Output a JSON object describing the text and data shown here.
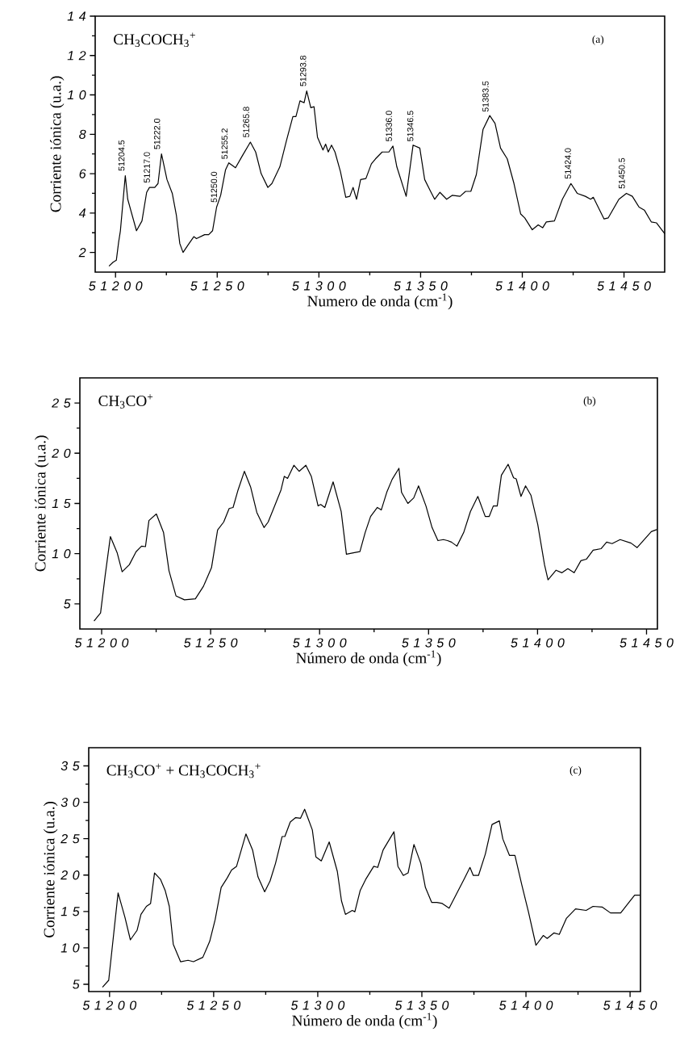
{
  "chart_data": [
    {
      "type": "line",
      "title": "CH$_{3}$COCH$_{3}$$^{+}$",
      "xlabel": "Numero de onda (cm$^{-1}$)",
      "ylabel": "Corriente iónica (u.a.)",
      "color": "#000000",
      "xlim": [
        51190,
        51470
      ],
      "ylim": [
        1,
        14
      ],
      "xticks": [
        51200,
        51250,
        51300,
        51350,
        51400,
        51450
      ],
      "yticks": [
        2,
        4,
        6,
        8,
        10,
        12,
        14
      ],
      "annotations": [
        "(a)",
        {
          "text": "51204.5",
          "x": 51204.5,
          "y": 5.9
        },
        {
          "text": "51217.0",
          "x": 51217.0,
          "y": 5.3
        },
        {
          "text": "51222.0",
          "x": 51222.0,
          "y": 7.0
        },
        {
          "text": "51250.0",
          "x": 51250.0,
          "y": 4.3
        },
        {
          "text": "51255.2",
          "x": 51255.2,
          "y": 6.5
        },
        {
          "text": "51265.8",
          "x": 51265.8,
          "y": 7.6
        },
        {
          "text": "51293.8",
          "x": 51293.8,
          "y": 10.2
        },
        {
          "text": "51336.0",
          "x": 51336.0,
          "y": 7.4
        },
        {
          "text": "51346.5",
          "x": 51346.5,
          "y": 7.4
        },
        {
          "text": "51383.5",
          "x": 51383.5,
          "y": 8.9
        },
        {
          "text": "51424.0",
          "x": 51424.0,
          "y": 5.5
        },
        {
          "text": "51450.5",
          "x": 51450.5,
          "y": 5.0
        }
      ],
      "x": [
        51196.8,
        51198.8,
        51200.4,
        51201.5,
        51202.4,
        51204.8,
        51206,
        51210.3,
        51213,
        51215.3,
        51216.7,
        51219.3,
        51220.9,
        51222.6,
        51225.3,
        51227.9,
        51229.9,
        51231.6,
        51233.2,
        51235.8,
        51238.5,
        51239.8,
        51243.8,
        51245.8,
        51247.7,
        51249.7,
        51251.7,
        51254.1,
        51255.7,
        51259,
        51262.3,
        51266.3,
        51268.9,
        51271.6,
        51274.9,
        51276.9,
        51280.8,
        51284.1,
        51287.2,
        51288.7,
        51290.7,
        51292.7,
        51294.0,
        51296,
        51297.6,
        51299.3,
        51302,
        51303.3,
        51304.6,
        51306.2,
        51307.9,
        51310.6,
        51313.2,
        51315.2,
        51316.8,
        51318.5,
        51320.5,
        51323.1,
        51325.8,
        51327.8,
        51331.1,
        51334.4,
        51336.4,
        51338.3,
        51342.9,
        51346.3,
        51349.6,
        51352,
        51354.9,
        51356.9,
        51359.5,
        51362.8,
        51365.5,
        51369.4,
        51372.1,
        51374.7,
        51377.4,
        51380.7,
        51384,
        51386.6,
        51389.3,
        51392.6,
        51395.9,
        51399.2,
        51401.2,
        51404.9,
        51407.8,
        51410,
        51411.8,
        51415.8,
        51419.7,
        51423.9,
        51427,
        51431,
        51433.6,
        51434.9,
        51440.2,
        51442.2,
        51447.5,
        51451.2,
        51454.1,
        51457.4,
        51460,
        51463.4,
        51466,
        51470
      ],
      "values": [
        1.3,
        1.5,
        1.6,
        2.5,
        3.1,
        5.9,
        4.7,
        3.1,
        3.6,
        5.05,
        5.3,
        5.3,
        5.5,
        7.0,
        5.7,
        5.0,
        3.9,
        2.45,
        2.0,
        2.4,
        2.8,
        2.7,
        2.9,
        2.9,
        3.1,
        4.3,
        4.9,
        6.2,
        6.55,
        6.3,
        6.9,
        7.6,
        7.1,
        6.0,
        5.3,
        5.5,
        6.35,
        7.7,
        8.9,
        8.9,
        9.7,
        9.6,
        10.2,
        9.35,
        9.4,
        7.85,
        7.2,
        7.5,
        7.1,
        7.45,
        7.1,
        6.1,
        4.8,
        4.85,
        5.3,
        4.7,
        5.7,
        5.75,
        6.5,
        6.75,
        7.1,
        7.1,
        7.4,
        6.35,
        4.85,
        7.45,
        7.3,
        5.7,
        5.1,
        4.7,
        5.05,
        4.7,
        4.9,
        4.85,
        5.1,
        5.1,
        5.95,
        8.25,
        8.95,
        8.55,
        7.3,
        6.75,
        5.5,
        3.95,
        3.75,
        3.15,
        3.4,
        3.25,
        3.55,
        3.6,
        4.7,
        5.5,
        5.0,
        4.85,
        4.7,
        4.8,
        3.7,
        3.75,
        4.7,
        5.0,
        4.85,
        4.3,
        4.15,
        3.55,
        3.5,
        2.95
      ]
    },
    {
      "type": "line",
      "title": "CH$_{3}$CO$^{+}$",
      "xlabel": "Número de onda (cm$^{-1}$)",
      "ylabel": "Corriente iónica (u.a.)",
      "color": "#000000",
      "xlim": [
        51190,
        51455
      ],
      "ylim": [
        2.5,
        27.5
      ],
      "xticks": [
        51200,
        51250,
        51300,
        51350,
        51400,
        51450
      ],
      "yticks": [
        5,
        10,
        15,
        20,
        25
      ],
      "annotations": [
        "(b)"
      ],
      "x": [
        51196.5,
        51199.5,
        51201.6,
        51204,
        51207.1,
        51209.4,
        51212.7,
        51215.8,
        51218.3,
        51220.1,
        51221.7,
        51225.1,
        51228.4,
        51230.9,
        51234.1,
        51238,
        51243,
        51246.7,
        51250.4,
        51253.2,
        51256,
        51258.5,
        51260.3,
        51262.6,
        51265.5,
        51268.4,
        51271.2,
        51274.5,
        51276.4,
        51278.9,
        51282.3,
        51283.8,
        51285.3,
        51288.2,
        51290.6,
        51293.7,
        51296.2,
        51299.3,
        51300.5,
        51302.4,
        51306.2,
        51309.9,
        51312.3,
        51316,
        51318.5,
        51320.9,
        51323.4,
        51326.5,
        51328.3,
        51330.8,
        51333.3,
        51336.4,
        51337.6,
        51340.5,
        51343.2,
        51345.4,
        51348.8,
        51351.6,
        51354.3,
        51356.8,
        51358.7,
        51360.5,
        51363,
        51366.1,
        51369.2,
        51372.6,
        51376,
        51377.8,
        51379.7,
        51381.5,
        51383.4,
        51386.5,
        51389,
        51390.2,
        51392.4,
        51394.5,
        51397,
        51400.1,
        51403.2,
        51404.8,
        51408.5,
        51411.2,
        51413.9,
        51416.8,
        51419.9,
        51422.4,
        51425.5,
        51429.2,
        51431.7,
        51434.2,
        51437.9,
        51442.9,
        51445.7,
        51448.5,
        51452.2,
        51454.7
      ],
      "values": [
        3.3,
        4.1,
        7.8,
        11.7,
        10.1,
        8.2,
        8.9,
        10.2,
        10.75,
        10.7,
        13.3,
        13.95,
        12.1,
        8.3,
        5.8,
        5.4,
        5.5,
        6.75,
        8.6,
        12.35,
        13.15,
        14.5,
        14.6,
        16.35,
        18.2,
        16.6,
        14.1,
        12.6,
        13.15,
        14.5,
        16.35,
        17.7,
        17.5,
        18.8,
        18.2,
        18.8,
        17.7,
        14.75,
        14.9,
        14.6,
        17.15,
        14.2,
        9.95,
        10.1,
        10.2,
        12.1,
        13.7,
        14.6,
        14.35,
        16.1,
        17.4,
        18.5,
        16.1,
        15.0,
        15.55,
        16.75,
        14.75,
        12.6,
        11.3,
        11.4,
        11.3,
        11.15,
        10.75,
        12.1,
        14.2,
        15.7,
        13.7,
        13.7,
        14.75,
        14.75,
        17.8,
        18.9,
        17.55,
        17.45,
        15.7,
        16.75,
        15.8,
        12.9,
        8.9,
        7.4,
        8.35,
        8.1,
        8.5,
        8.1,
        9.3,
        9.45,
        10.35,
        10.5,
        11.15,
        11.0,
        11.4,
        11.05,
        10.6,
        11.3,
        12.2,
        12.4
      ]
    },
    {
      "type": "line",
      "title": "CH$_{3}$CO$^{+}$ + CH$_{3}$COCH$_{3}$$^{+}$",
      "xlabel": "Número de onda (cm$^{-1}$)",
      "ylabel": "Corriente iónica (u.a.)",
      "color": "#000000",
      "xlim": [
        51190,
        51455
      ],
      "ylim": [
        4,
        37.5
      ],
      "xticks": [
        51200,
        51250,
        51300,
        51350,
        51400,
        51450
      ],
      "yticks": [
        5,
        10,
        15,
        20,
        25,
        30,
        35
      ],
      "annotations": [
        "(c)"
      ],
      "x": [
        51196.6,
        51199.6,
        51204.1,
        51207.4,
        51210,
        51213.2,
        51215.1,
        51217.7,
        51219.7,
        51221.6,
        51224.5,
        51226.7,
        51228.7,
        51230.6,
        51234.1,
        51237.7,
        51240.3,
        51244.8,
        51248.1,
        51250.7,
        51253.6,
        51256.5,
        51258.6,
        51261,
        51265.5,
        51268.7,
        51271.3,
        51274.5,
        51277.1,
        51279.7,
        51282.9,
        51284.2,
        51286.8,
        51289.4,
        51291.7,
        51293.7,
        51297.4,
        51299.1,
        51301.7,
        51305.5,
        51309.4,
        51311.4,
        51313.3,
        51316.6,
        51317.8,
        51320.4,
        51323,
        51326.9,
        51328.8,
        51331.4,
        51336.6,
        51338.5,
        51341.1,
        51343.4,
        51346.2,
        51349.5,
        51351.7,
        51354.7,
        51357.2,
        51359.8,
        51363.1,
        51366.9,
        51370.2,
        51373.1,
        51374.7,
        51377.2,
        51380.5,
        51383.7,
        51387.2,
        51388.9,
        51392.1,
        51394.7,
        51398,
        51401.2,
        51404.8,
        51408.3,
        51410.2,
        51413.4,
        51416,
        51419.4,
        51423.8,
        51428.9,
        51432.2,
        51436.7,
        51440.6,
        51445.5,
        51448.9,
        51452.2,
        51454.8
      ],
      "values": [
        4.6,
        5.55,
        17.55,
        14.2,
        11.1,
        12.4,
        14.6,
        15.7,
        16.1,
        20.3,
        19.4,
        17.9,
        15.7,
        10.5,
        8.1,
        8.3,
        8.1,
        8.7,
        10.9,
        13.85,
        18.3,
        19.6,
        20.7,
        21.2,
        25.65,
        23.45,
        19.75,
        17.7,
        19.2,
        21.6,
        25.3,
        25.3,
        27.3,
        27.9,
        27.8,
        29.05,
        26.2,
        22.5,
        21.95,
        24.55,
        20.5,
        16.45,
        14.6,
        15.15,
        14.95,
        17.9,
        19.4,
        21.2,
        21.05,
        23.45,
        25.95,
        21.2,
        19.95,
        20.3,
        24.2,
        21.6,
        18.3,
        16.25,
        16.25,
        16.1,
        15.45,
        17.55,
        19.4,
        21.05,
        19.95,
        19.95,
        22.9,
        26.95,
        27.45,
        24.95,
        22.7,
        22.7,
        18.65,
        14.95,
        10.35,
        11.7,
        11.3,
        12.05,
        11.85,
        14.05,
        15.35,
        15.15,
        15.7,
        15.6,
        14.8,
        14.8,
        16.05,
        17.25,
        17.25
      ]
    }
  ]
}
